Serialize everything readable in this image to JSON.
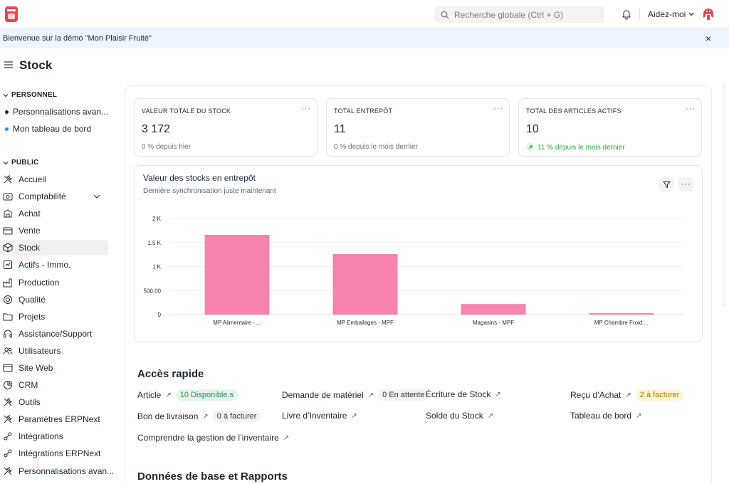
{
  "navbar": {
    "search_placeholder": "Recherche globale (Ctrl + G)",
    "help_label": "Aidez-moi"
  },
  "banner": {
    "text": "Bienvenue sur la démo \"Mon Plaisir Fruité\"",
    "close": "×"
  },
  "page": {
    "title": "Stock"
  },
  "sidebar": {
    "personal_label": "PERSONNEL",
    "personal_items": [
      {
        "label": "Personnalisations avan...",
        "color": "#1f272e"
      },
      {
        "label": "Mon tableau de bord",
        "color": "#2490ef"
      }
    ],
    "public_label": "PUBLIC",
    "items": [
      {
        "label": "Accueil",
        "icon": "tools-icon"
      },
      {
        "label": "Comptabilité",
        "icon": "accounting-icon"
      },
      {
        "label": "Achat",
        "icon": "purchase-icon"
      },
      {
        "label": "Vente",
        "icon": "sale-icon"
      },
      {
        "label": "Stock",
        "icon": "box-icon"
      },
      {
        "label": "Actifs - Immo.",
        "icon": "asset-icon"
      },
      {
        "label": "Production",
        "icon": "factory-icon"
      },
      {
        "label": "Qualité",
        "icon": "quality-icon"
      },
      {
        "label": "Projets",
        "icon": "folder-icon"
      },
      {
        "label": "Assistance/Support",
        "icon": "headset-icon"
      },
      {
        "label": "Utilisateurs",
        "icon": "users-icon"
      },
      {
        "label": "Site Web",
        "icon": "website-icon"
      },
      {
        "label": "CRM",
        "icon": "crm-icon"
      },
      {
        "label": "Outils",
        "icon": "tools-icon"
      },
      {
        "label": "Paramètres ERPNext",
        "icon": "tools-icon"
      },
      {
        "label": "Intégrations",
        "icon": "integration-icon"
      },
      {
        "label": "Intégrations ERPNext",
        "icon": "integration-icon"
      },
      {
        "label": "Personnalisations avan...",
        "icon": "tools-icon"
      }
    ]
  },
  "cards": [
    {
      "label": "VALEUR TOTALE DU STOCK",
      "value": "3 172",
      "sub": "0 % depuis hier",
      "trend": "neutral"
    },
    {
      "label": "TOTAL ENTREPÔT",
      "value": "11",
      "sub": "0 % depuis le mois dernier",
      "trend": "neutral"
    },
    {
      "label": "TOTAL DES ARTICLES ACTIFS",
      "value": "10",
      "sub": "11 % depuis le mois dernier",
      "trend": "up"
    }
  ],
  "card_more": "···",
  "chart": {
    "title": "Valeur des stocks en entrepôt",
    "subtitle": "Dernière synchronisation juste maintenant",
    "more": "···"
  },
  "chart_data": {
    "type": "bar",
    "categories": [
      "MP Alimentaire - ...",
      "MP Emballages - MPF",
      "Magasins - MPF",
      "MP Chambre Froid ..."
    ],
    "values": [
      1660,
      1260,
      220,
      30
    ],
    "ylim": [
      0,
      2000
    ],
    "yticks": [
      0,
      500,
      1000,
      1500,
      2000
    ],
    "ytick_labels": [
      "0",
      "500.00",
      "1 K",
      "1.5 K",
      "2 K"
    ],
    "grid": true,
    "color": "#f683ae"
  },
  "quick_access": {
    "title": "Accès rapide",
    "links": [
      {
        "label": "Article",
        "badge": "10 Disponible.s",
        "badge_style": "green"
      },
      {
        "label": "Demande de matériel",
        "badge": "0 En attente",
        "badge_style": "gray"
      },
      {
        "label": "Écriture de Stock",
        "badge": "",
        "badge_style": ""
      },
      {
        "label": "Reçu d’Achat",
        "badge": "2 à facturer",
        "badge_style": "yellow"
      },
      {
        "label": "Bon de livraison",
        "badge": "0 à facturer",
        "badge_style": "gray"
      },
      {
        "label": "Livre d’Inventaire",
        "badge": "",
        "badge_style": ""
      },
      {
        "label": "Solde du Stock",
        "badge": "",
        "badge_style": ""
      },
      {
        "label": "Tableau de bord",
        "badge": "",
        "badge_style": ""
      },
      {
        "label": "Comprendre la gestion de l’inventaire",
        "badge": "",
        "badge_style": ""
      }
    ],
    "arrow": "↗"
  },
  "masters": {
    "title": "Données de base et Rapports"
  }
}
